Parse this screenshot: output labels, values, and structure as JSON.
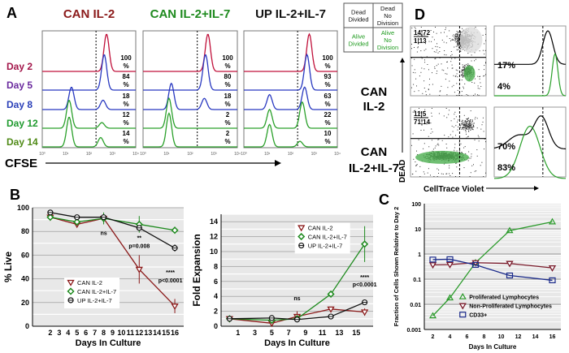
{
  "panel_labels": {
    "a": "A",
    "b": "B",
    "c": "C",
    "d": "D"
  },
  "panel_a": {
    "conditions": [
      {
        "title": "CAN IL-2",
        "color": "#8b1a1a",
        "percents": [
          "100",
          "84",
          "18",
          "12",
          "14"
        ],
        "peaks": [
          [
            [
              2.75,
              1.0
            ]
          ],
          [
            [
              2.65,
              0.95
            ]
          ],
          [
            [
              1.25,
              0.6
            ],
            [
              2.6,
              0.25
            ]
          ],
          [
            [
              1.15,
              0.75
            ],
            [
              2.55,
              0.15
            ]
          ],
          [
            [
              1.15,
              0.8
            ],
            [
              2.5,
              0.25
            ]
          ]
        ]
      },
      {
        "title": "CAN IL-2+IL-7",
        "color": "#1e8a1e",
        "percents": [
          "100",
          "80",
          "18",
          "2",
          "2"
        ],
        "peaks": [
          [
            [
              2.75,
              1.0
            ]
          ],
          [
            [
              2.65,
              0.95
            ]
          ],
          [
            [
              1.2,
              0.7
            ],
            [
              2.6,
              0.3
            ]
          ],
          [
            [
              1.1,
              0.8
            ]
          ],
          [
            [
              1.1,
              0.9
            ]
          ]
        ]
      },
      {
        "title": "UP IL-2+IL-7",
        "color": "#111111",
        "percents": [
          "100",
          "93",
          "63",
          "22",
          "10"
        ],
        "peaks": [
          [
            [
              2.8,
              1.0
            ]
          ],
          [
            [
              2.7,
              0.95
            ]
          ],
          [
            [
              1.1,
              0.4
            ],
            [
              2.6,
              0.6
            ]
          ],
          [
            [
              1.1,
              0.5
            ],
            [
              2.5,
              0.7
            ]
          ],
          [
            [
              1.1,
              0.6
            ],
            [
              2.4,
              0.15
            ]
          ]
        ]
      }
    ],
    "days": [
      "Day 2",
      "Day 5",
      "Day 8",
      "Day 12",
      "Day 14"
    ],
    "day_colors": [
      "#a3164a",
      "#6a2a9e",
      "#2a3fb8",
      "#1f9a2e",
      "#4f8a16"
    ],
    "curve_colors": [
      "#c0103a",
      "#2838c0",
      "#2838c0",
      "#2aa02a",
      "#2aa02a"
    ],
    "xaxis_label": "CFSE",
    "tick_labels": [
      "10⁰",
      "10¹",
      "10²",
      "10³",
      "10⁴"
    ],
    "division_gate_log": 2.3
  },
  "legend_box": {
    "cells": [
      [
        "Dead Divided",
        "Dead No Division"
      ],
      [
        "Alive Divided",
        "Alive No Division"
      ]
    ],
    "colors": {
      "dead": "#111111",
      "alive": "#1e9a1e"
    }
  },
  "panel_d": {
    "rows": [
      {
        "label": "CAN IL-2",
        "quadrants": [
          "14",
          "72",
          "1",
          "13"
        ],
        "upper_pct": "17%",
        "lower_pct": "4%"
      },
      {
        "label": "CAN IL-2+IL-7",
        "quadrants": [
          "11",
          "5",
          "71",
          "14"
        ],
        "upper_pct": "70%",
        "lower_pct": "83%"
      }
    ],
    "yaxis_label": "DEAD",
    "xaxis_label": "CellTrace Violet"
  },
  "chart_data": [
    {
      "type": "line",
      "title": "",
      "xlabel": "Days In Culture",
      "ylabel": "% Live",
      "ylim": [
        0,
        100
      ],
      "xlim": [
        0,
        17
      ],
      "yticks": [
        0,
        20,
        40,
        60,
        80,
        100
      ],
      "xticks": [
        2,
        3,
        4,
        5,
        6,
        7,
        8,
        9,
        10,
        11,
        12,
        13,
        14,
        15,
        16
      ],
      "grid": true,
      "legend": "bottom-center",
      "x": [
        2,
        5,
        8,
        12,
        16
      ],
      "series": [
        {
          "name": "CAN IL-2",
          "color": "#8b1a1a",
          "marker": "triangle-down",
          "values": [
            92,
            86,
            91,
            48,
            17
          ],
          "err": [
            1,
            1,
            2,
            12,
            6
          ]
        },
        {
          "name": "CAN IL-2+IL-7",
          "color": "#1e8a1e",
          "marker": "diamond",
          "values": [
            92,
            88,
            91,
            86,
            81
          ],
          "err": [
            1,
            2,
            5,
            7,
            3
          ]
        },
        {
          "name": "UP IL-2+IL-7",
          "color": "#111111",
          "marker": "circle",
          "values": [
            96,
            92,
            92,
            83,
            66
          ],
          "err": [
            1,
            1,
            2,
            2,
            3
          ]
        }
      ],
      "annotations": [
        {
          "text": "ns",
          "x": 8,
          "y": 77
        },
        {
          "text": "**",
          "x": 12,
          "y": 73
        },
        {
          "text": "p=0.008",
          "x": 12,
          "y": 66
        },
        {
          "text": "****",
          "x": 15.5,
          "y": 44
        },
        {
          "text": "p<0.0001",
          "x": 15.5,
          "y": 37
        }
      ]
    },
    {
      "type": "line",
      "title": "",
      "xlabel": "Days In Culture",
      "ylabel": "Fold Expansion",
      "ylim": [
        0,
        15
      ],
      "xlim": [
        -1,
        17
      ],
      "yticks": [
        0,
        2,
        4,
        6,
        8,
        10,
        12,
        14
      ],
      "xticks": [
        1,
        3,
        5,
        7,
        9,
        11,
        13,
        15
      ],
      "grid": true,
      "legend": "top-right",
      "x": [
        0,
        5,
        8,
        12,
        16
      ],
      "series": [
        {
          "name": "CAN IL-2",
          "color": "#8b1a1a",
          "marker": "triangle-down",
          "values": [
            1,
            0.4,
            1.3,
            2.3,
            1.9
          ],
          "err": [
            0.1,
            0.2,
            0.7,
            0.2,
            0.5
          ]
        },
        {
          "name": "CAN IL-2+IL-7",
          "color": "#1e8a1e",
          "marker": "diamond",
          "values": [
            1,
            0.8,
            1.0,
            4.3,
            11
          ],
          "err": [
            0.1,
            0.2,
            0.3,
            0.4,
            2.4
          ]
        },
        {
          "name": "UP IL-2+IL-7",
          "color": "#111111",
          "marker": "circle",
          "values": [
            1,
            1.1,
            0.9,
            1.3,
            3.2
          ],
          "err": [
            0.1,
            0.1,
            0.2,
            0.1,
            0.3
          ]
        }
      ],
      "annotations": [
        {
          "text": "ns",
          "x": 8,
          "y": 3.5
        },
        {
          "text": "****",
          "x": 16,
          "y": 6.3
        },
        {
          "text": "p<0.0001",
          "x": 16,
          "y": 5.3
        }
      ]
    },
    {
      "type": "line",
      "title": "",
      "xlabel": "Days In Culture",
      "ylabel": "Fraction of Cells Shown Relative to Day 2",
      "yscale": "log",
      "ylim": [
        0.001,
        100
      ],
      "xlim": [
        1,
        17
      ],
      "yticks": [
        "0.001",
        "0.01",
        "0.1",
        "1",
        "10",
        "100"
      ],
      "xticks": [
        2,
        4,
        6,
        8,
        10,
        12,
        14,
        16
      ],
      "grid": true,
      "legend": "bottom-right",
      "x": [
        2,
        4,
        7,
        11,
        16
      ],
      "series": [
        {
          "name": "Proliferated Lymphocytes",
          "color": "#2a9a2a",
          "marker": "triangle-up",
          "values": [
            0.0035,
            0.018,
            0.45,
            8.5,
            19
          ]
        },
        {
          "name": "Non-Proliferated Lymphocytes",
          "color": "#7a1a2a",
          "marker": "triangle-down",
          "values": [
            0.37,
            0.38,
            0.45,
            0.42,
            0.28
          ]
        },
        {
          "name": "CD33+",
          "color": "#1a2a8a",
          "marker": "square",
          "values": [
            0.6,
            0.62,
            0.37,
            0.14,
            0.09
          ]
        }
      ]
    }
  ]
}
